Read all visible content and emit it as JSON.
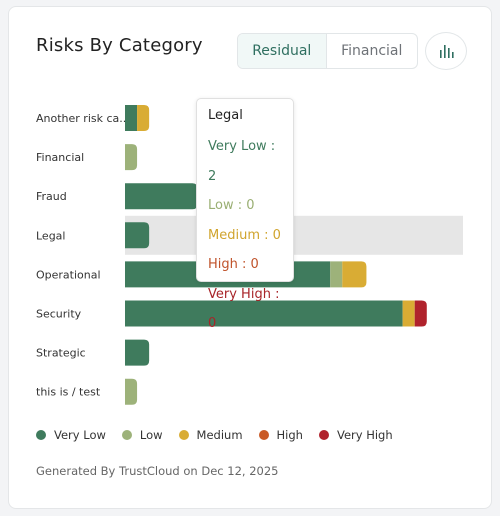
{
  "title": "Risks By Category",
  "toggle": {
    "residual_label": "Residual",
    "financial_label": "Financial"
  },
  "colors": {
    "very_low": "#3f7b5d",
    "low": "#9db27a",
    "medium": "#d9ac34",
    "high": "#c95a26",
    "very_high": "#b0222c"
  },
  "chart_data": {
    "type": "bar",
    "orientation": "horizontal",
    "stacked": true,
    "categories": [
      "Another risk ca...",
      "Financial",
      "Fraud",
      "Legal",
      "Operational",
      "Security",
      "Strategic",
      "this is / test"
    ],
    "series": [
      {
        "name": "Very Low",
        "values": [
          1,
          0,
          6,
          2,
          17,
          23,
          2,
          0
        ]
      },
      {
        "name": "Low",
        "values": [
          0,
          1,
          0,
          0,
          1,
          0,
          0,
          1
        ]
      },
      {
        "name": "Medium",
        "values": [
          1,
          0,
          0,
          0,
          2,
          1,
          0,
          0
        ]
      },
      {
        "name": "High",
        "values": [
          0,
          0,
          0,
          0,
          0,
          0,
          0,
          0
        ]
      },
      {
        "name": "Very High",
        "values": [
          0,
          0,
          0,
          0,
          0,
          1,
          0,
          0
        ]
      }
    ],
    "xlim": [
      0,
      28
    ],
    "highlighted_category": "Legal",
    "legend_position": "bottom",
    "grid": false
  },
  "tooltip": {
    "title": "Legal",
    "rows": [
      {
        "label": "Very Low : 2"
      },
      {
        "label": "Low : 0"
      },
      {
        "label": "Medium : 0"
      },
      {
        "label": "High : 0"
      },
      {
        "label": "Very High : 0"
      }
    ]
  },
  "legend": {
    "items": [
      {
        "label": "Very Low",
        "color": "#3f7b5d"
      },
      {
        "label": "Low",
        "color": "#9db27a"
      },
      {
        "label": "Medium",
        "color": "#d9ac34"
      },
      {
        "label": "High",
        "color": "#c95a26"
      },
      {
        "label": "Very High",
        "color": "#b0222c"
      }
    ]
  },
  "footer": "Generated By TrustCloud on Dec 12, 2025",
  "chart_icon": "bar-chart-icon"
}
